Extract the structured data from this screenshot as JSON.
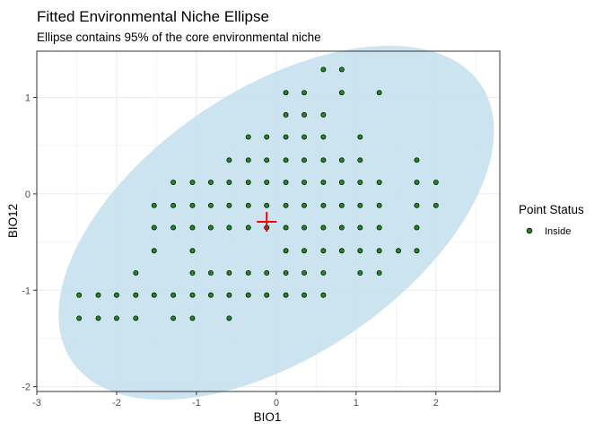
{
  "chart_data": {
    "type": "scatter",
    "title": "Fitted Environmental Niche Ellipse",
    "subtitle": "Ellipse contains 95% of the core environmental niche",
    "xlabel": "BIO1",
    "ylabel": "BIO12",
    "xlim": [
      -3,
      2.8
    ],
    "ylim": [
      -2.05,
      1.48
    ],
    "x_ticks": [
      -3,
      -2,
      -1,
      0,
      1,
      2
    ],
    "y_ticks": [
      -2,
      -1,
      0,
      1
    ],
    "x_tick_labels": [
      "-3",
      "-2",
      "-1",
      "0",
      "1",
      "2"
    ],
    "y_tick_labels": [
      "-2",
      "-1",
      "0",
      "1"
    ],
    "grid": true,
    "legend": {
      "title": "Point Status",
      "placement": "right",
      "entries": [
        {
          "label": "Inside",
          "color": "#1e8a1e"
        }
      ]
    },
    "ellipse": {
      "center": [
        0.0,
        -0.3
      ],
      "semi_major": 2.95,
      "semi_minor": 1.45,
      "angle_deg": 26,
      "fill": "#c6e0ee"
    },
    "centroid": {
      "x": -0.12,
      "y": -0.29,
      "color": "#ff0000"
    },
    "series": [
      {
        "name": "Inside",
        "color": "#1e8a1e",
        "points": [
          [
            0.59,
            1.29
          ],
          [
            0.82,
            1.29
          ],
          [
            0.12,
            1.05
          ],
          [
            0.35,
            1.05
          ],
          [
            0.82,
            1.05
          ],
          [
            1.29,
            1.05
          ],
          [
            0.12,
            0.82
          ],
          [
            0.35,
            0.82
          ],
          [
            0.59,
            0.82
          ],
          [
            -0.35,
            0.59
          ],
          [
            -0.12,
            0.59
          ],
          [
            0.12,
            0.59
          ],
          [
            0.35,
            0.59
          ],
          [
            0.59,
            0.59
          ],
          [
            1.05,
            0.59
          ],
          [
            -0.59,
            0.35
          ],
          [
            -0.35,
            0.35
          ],
          [
            -0.12,
            0.35
          ],
          [
            0.12,
            0.35
          ],
          [
            0.35,
            0.35
          ],
          [
            0.59,
            0.35
          ],
          [
            0.82,
            0.35
          ],
          [
            1.05,
            0.35
          ],
          [
            1.76,
            0.35
          ],
          [
            -1.29,
            0.12
          ],
          [
            -1.05,
            0.12
          ],
          [
            -0.82,
            0.12
          ],
          [
            -0.59,
            0.12
          ],
          [
            -0.35,
            0.12
          ],
          [
            -0.12,
            0.12
          ],
          [
            0.12,
            0.12
          ],
          [
            0.35,
            0.12
          ],
          [
            0.59,
            0.12
          ],
          [
            0.82,
            0.12
          ],
          [
            1.05,
            0.12
          ],
          [
            1.29,
            0.12
          ],
          [
            1.76,
            0.12
          ],
          [
            2.0,
            0.12
          ],
          [
            -1.53,
            -0.12
          ],
          [
            -1.29,
            -0.12
          ],
          [
            -1.05,
            -0.12
          ],
          [
            -0.82,
            -0.12
          ],
          [
            -0.59,
            -0.12
          ],
          [
            -0.35,
            -0.12
          ],
          [
            -0.12,
            -0.12
          ],
          [
            0.12,
            -0.12
          ],
          [
            0.35,
            -0.12
          ],
          [
            0.59,
            -0.12
          ],
          [
            0.82,
            -0.12
          ],
          [
            1.05,
            -0.12
          ],
          [
            1.29,
            -0.12
          ],
          [
            1.76,
            -0.12
          ],
          [
            2.0,
            -0.12
          ],
          [
            -1.53,
            -0.35
          ],
          [
            -1.29,
            -0.35
          ],
          [
            -1.05,
            -0.35
          ],
          [
            -0.82,
            -0.35
          ],
          [
            -0.59,
            -0.35
          ],
          [
            -0.35,
            -0.35
          ],
          [
            -0.12,
            -0.35
          ],
          [
            0.12,
            -0.35
          ],
          [
            0.35,
            -0.35
          ],
          [
            0.59,
            -0.35
          ],
          [
            0.82,
            -0.35
          ],
          [
            1.05,
            -0.35
          ],
          [
            1.29,
            -0.35
          ],
          [
            1.76,
            -0.35
          ],
          [
            -1.53,
            -0.59
          ],
          [
            -1.05,
            -0.59
          ],
          [
            0.12,
            -0.59
          ],
          [
            0.35,
            -0.59
          ],
          [
            0.59,
            -0.59
          ],
          [
            0.82,
            -0.59
          ],
          [
            1.05,
            -0.59
          ],
          [
            1.29,
            -0.59
          ],
          [
            1.53,
            -0.59
          ],
          [
            1.76,
            -0.59
          ],
          [
            -1.76,
            -0.82
          ],
          [
            -1.05,
            -0.82
          ],
          [
            -0.82,
            -0.82
          ],
          [
            -0.59,
            -0.82
          ],
          [
            -0.35,
            -0.82
          ],
          [
            -0.12,
            -0.82
          ],
          [
            0.12,
            -0.82
          ],
          [
            0.35,
            -0.82
          ],
          [
            0.59,
            -0.82
          ],
          [
            1.05,
            -0.82
          ],
          [
            1.29,
            -0.82
          ],
          [
            -2.47,
            -1.05
          ],
          [
            -2.23,
            -1.05
          ],
          [
            -2.0,
            -1.05
          ],
          [
            -1.76,
            -1.05
          ],
          [
            -1.53,
            -1.05
          ],
          [
            -1.29,
            -1.05
          ],
          [
            -1.05,
            -1.05
          ],
          [
            -0.82,
            -1.05
          ],
          [
            -0.59,
            -1.05
          ],
          [
            -0.35,
            -1.05
          ],
          [
            -0.12,
            -1.05
          ],
          [
            0.12,
            -1.05
          ],
          [
            0.35,
            -1.05
          ],
          [
            0.59,
            -1.05
          ],
          [
            -2.47,
            -1.29
          ],
          [
            -2.23,
            -1.29
          ],
          [
            -2.0,
            -1.29
          ],
          [
            -1.76,
            -1.29
          ],
          [
            -1.29,
            -1.29
          ],
          [
            -1.05,
            -1.29
          ],
          [
            -0.59,
            -1.29
          ]
        ]
      }
    ]
  }
}
